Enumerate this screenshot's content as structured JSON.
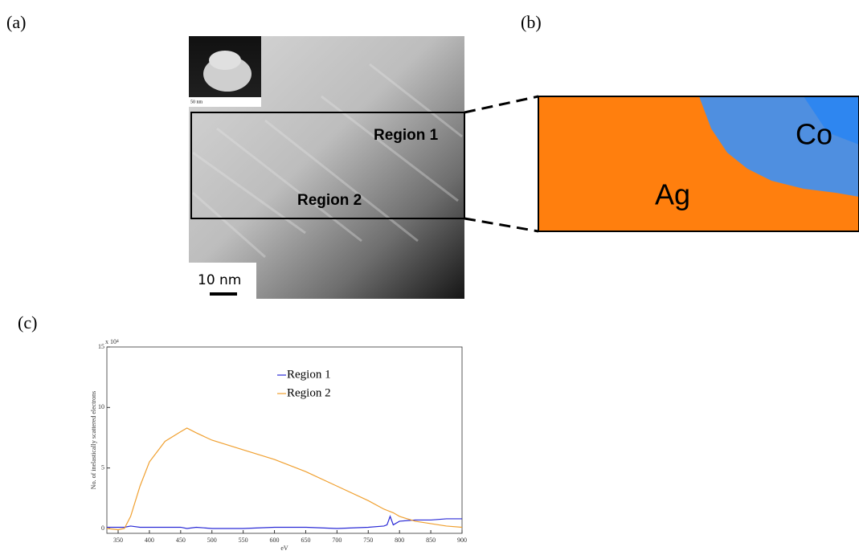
{
  "panels": [
    "(a)",
    "(b)",
    "(c)"
  ],
  "image_a": {
    "inset_scale": "50 nm",
    "regions": [
      "Region 1",
      "Region 2"
    ],
    "scale_bar": "10 nm"
  },
  "image_b": {
    "labels": [
      "Co",
      "Ag"
    ]
  },
  "chart_data": {
    "type": "line",
    "xlabel": "eV",
    "ylabel": "No. of inelastically scattered electrons",
    "y_multiplier": "x 10⁴",
    "x": [
      332,
      350,
      360,
      370,
      385,
      400,
      425,
      450,
      460,
      475,
      500,
      550,
      600,
      650,
      700,
      750,
      775,
      780,
      785,
      790,
      800,
      825,
      850,
      875,
      900
    ],
    "series": [
      {
        "name": "Region 1",
        "color": "#2b2bd6",
        "values": [
          0.1,
          0.1,
          0.1,
          0.2,
          0.1,
          0.1,
          0.1,
          0.1,
          0.0,
          0.1,
          0.0,
          0.0,
          0.1,
          0.1,
          0.0,
          0.1,
          0.2,
          0.3,
          1.0,
          0.3,
          0.6,
          0.7,
          0.7,
          0.8,
          0.8
        ]
      },
      {
        "name": "Region 2",
        "color": "#f0a030",
        "values": [
          0.0,
          -0.1,
          0.0,
          1.0,
          3.5,
          5.5,
          7.2,
          8.0,
          8.3,
          7.9,
          7.3,
          6.5,
          5.7,
          4.7,
          3.5,
          2.3,
          1.6,
          1.5,
          1.4,
          1.3,
          1.0,
          0.6,
          0.4,
          0.2,
          0.1
        ]
      }
    ],
    "xlim": [
      332,
      900
    ],
    "ylim": [
      -0.4,
      15
    ],
    "xticks": [
      350,
      400,
      450,
      500,
      550,
      600,
      650,
      700,
      750,
      800,
      850,
      900
    ],
    "yticks": [
      0,
      5,
      10,
      15
    ]
  }
}
